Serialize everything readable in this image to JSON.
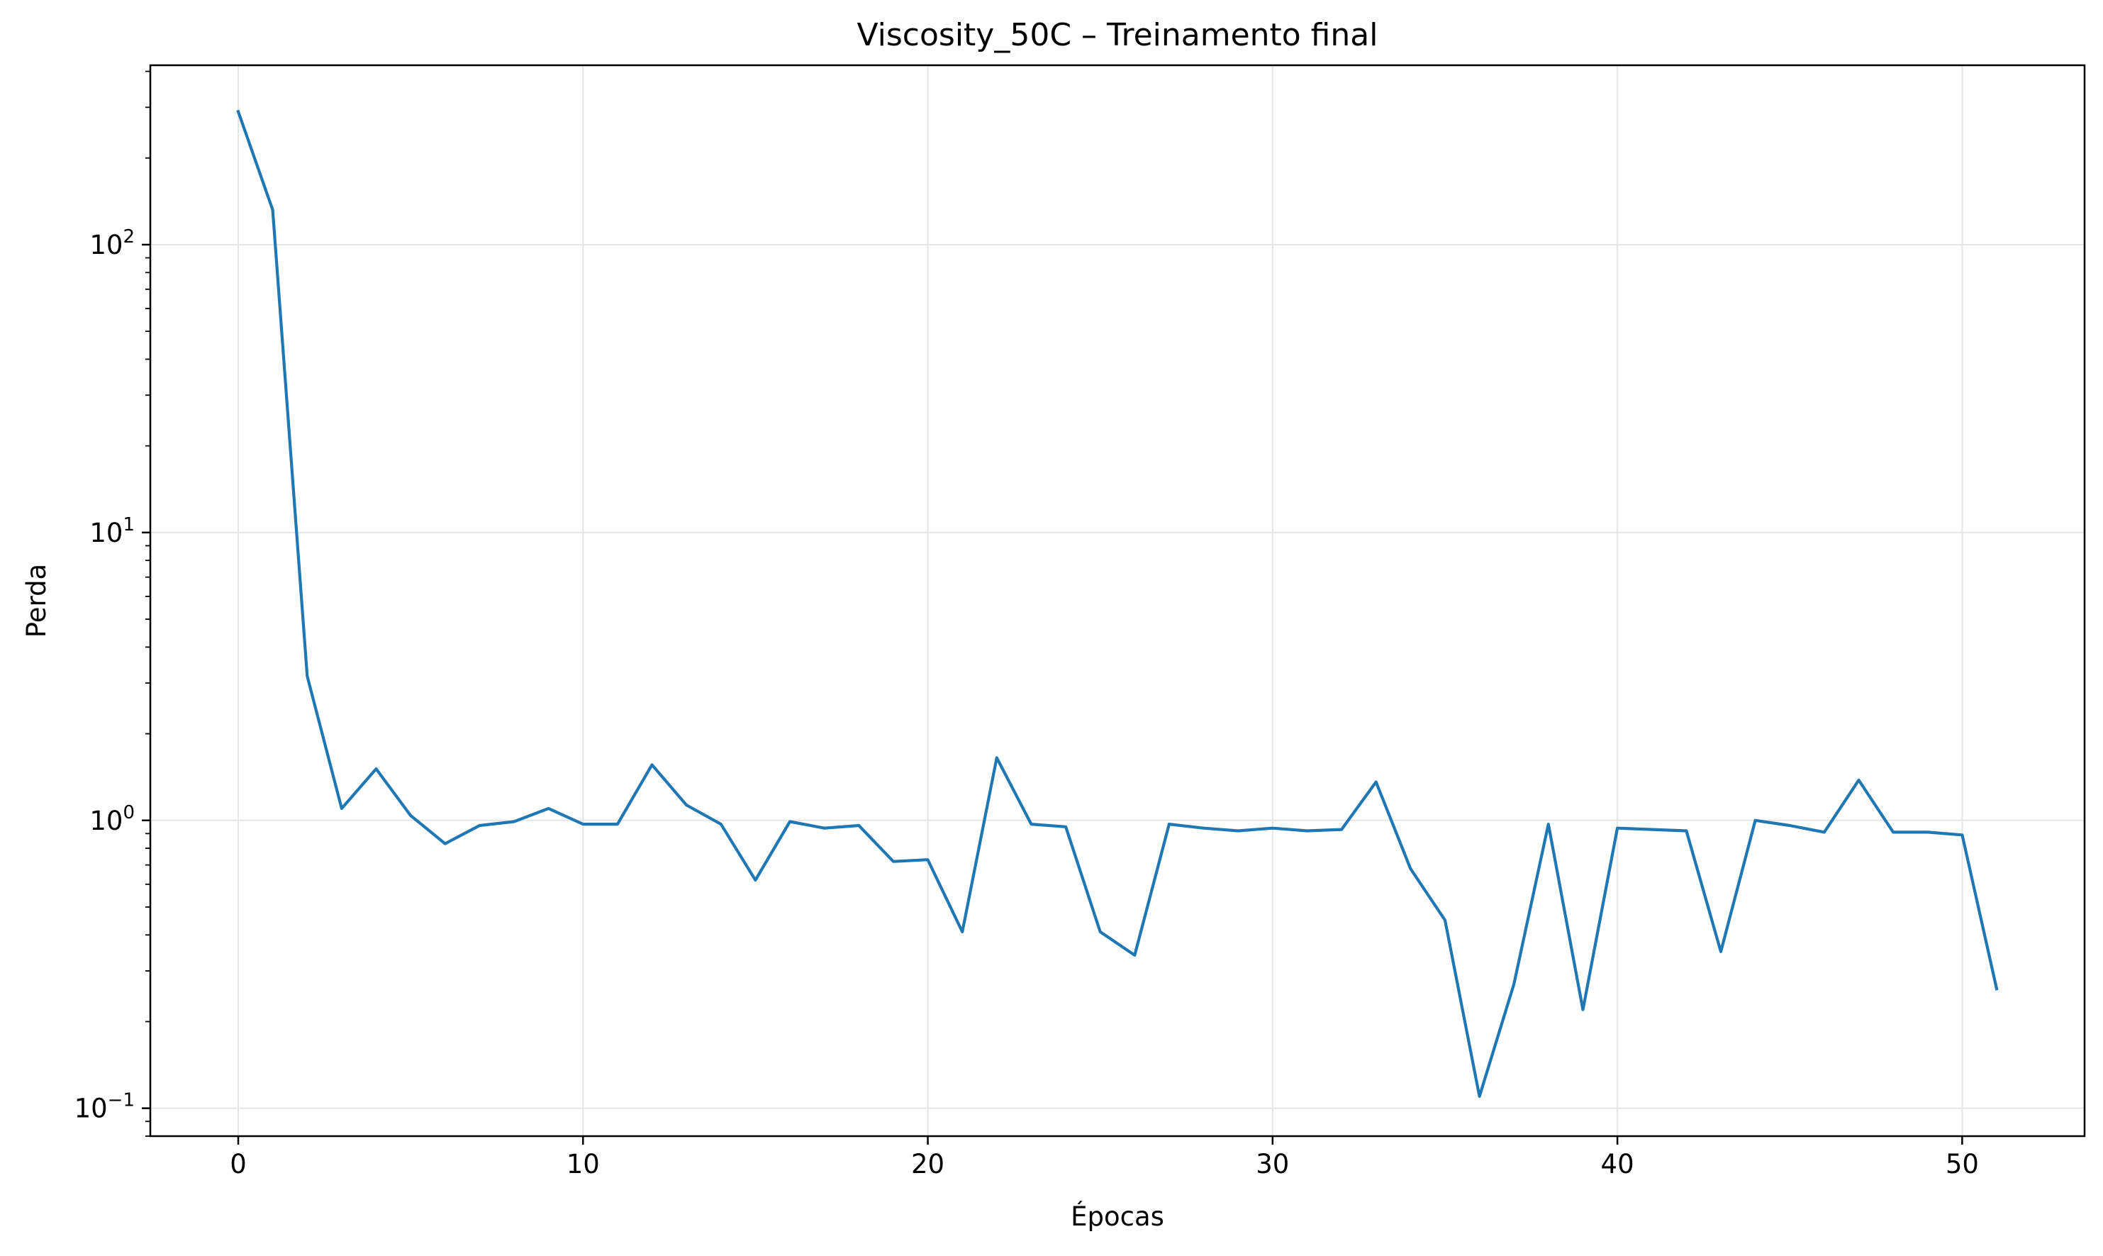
{
  "chart_data": {
    "type": "line",
    "title": "Viscosity_50C – Treinamento final",
    "xlabel": "Épocas",
    "ylabel": "Perda",
    "xlim": [
      -2.55,
      53.55
    ],
    "ylim": [
      0.08,
      420
    ],
    "yscale": "log",
    "grid": true,
    "line_color": "#1f77b4",
    "grid_color": "#e6e6e6",
    "x_ticks": [
      0,
      10,
      20,
      30,
      40,
      50
    ],
    "y_ticks": [
      {
        "value": 0.1,
        "base": "10",
        "exp": "−1"
      },
      {
        "value": 1,
        "base": "10",
        "exp": "0"
      },
      {
        "value": 10,
        "base": "10",
        "exp": "1"
      },
      {
        "value": 100,
        "base": "10",
        "exp": "2"
      }
    ],
    "series": [
      {
        "x": [
          0,
          1,
          2,
          3,
          4,
          5,
          6,
          7,
          8,
          9,
          10,
          11,
          12,
          13,
          14,
          15,
          16,
          17,
          18,
          19,
          20,
          21,
          22,
          23,
          24,
          25,
          26,
          27,
          28,
          29,
          30,
          31,
          32,
          33,
          34,
          35,
          36,
          37,
          38,
          39,
          40,
          41,
          42,
          43,
          44,
          45,
          46,
          47,
          48,
          49,
          50,
          51
        ],
        "y": [
          290,
          132,
          3.17,
          1.1,
          1.51,
          1.04,
          0.83,
          0.96,
          0.99,
          1.1,
          0.97,
          0.97,
          1.56,
          1.13,
          0.97,
          0.62,
          0.99,
          0.94,
          0.96,
          0.72,
          0.73,
          0.41,
          1.65,
          0.97,
          0.95,
          0.41,
          0.34,
          0.97,
          0.94,
          0.92,
          0.94,
          0.92,
          0.93,
          1.36,
          0.68,
          0.45,
          0.11,
          0.27,
          0.97,
          0.22,
          0.94,
          0.93,
          0.92,
          0.35,
          1.0,
          0.96,
          0.91,
          1.38,
          0.91,
          0.91,
          0.89,
          0.26
        ]
      }
    ]
  }
}
